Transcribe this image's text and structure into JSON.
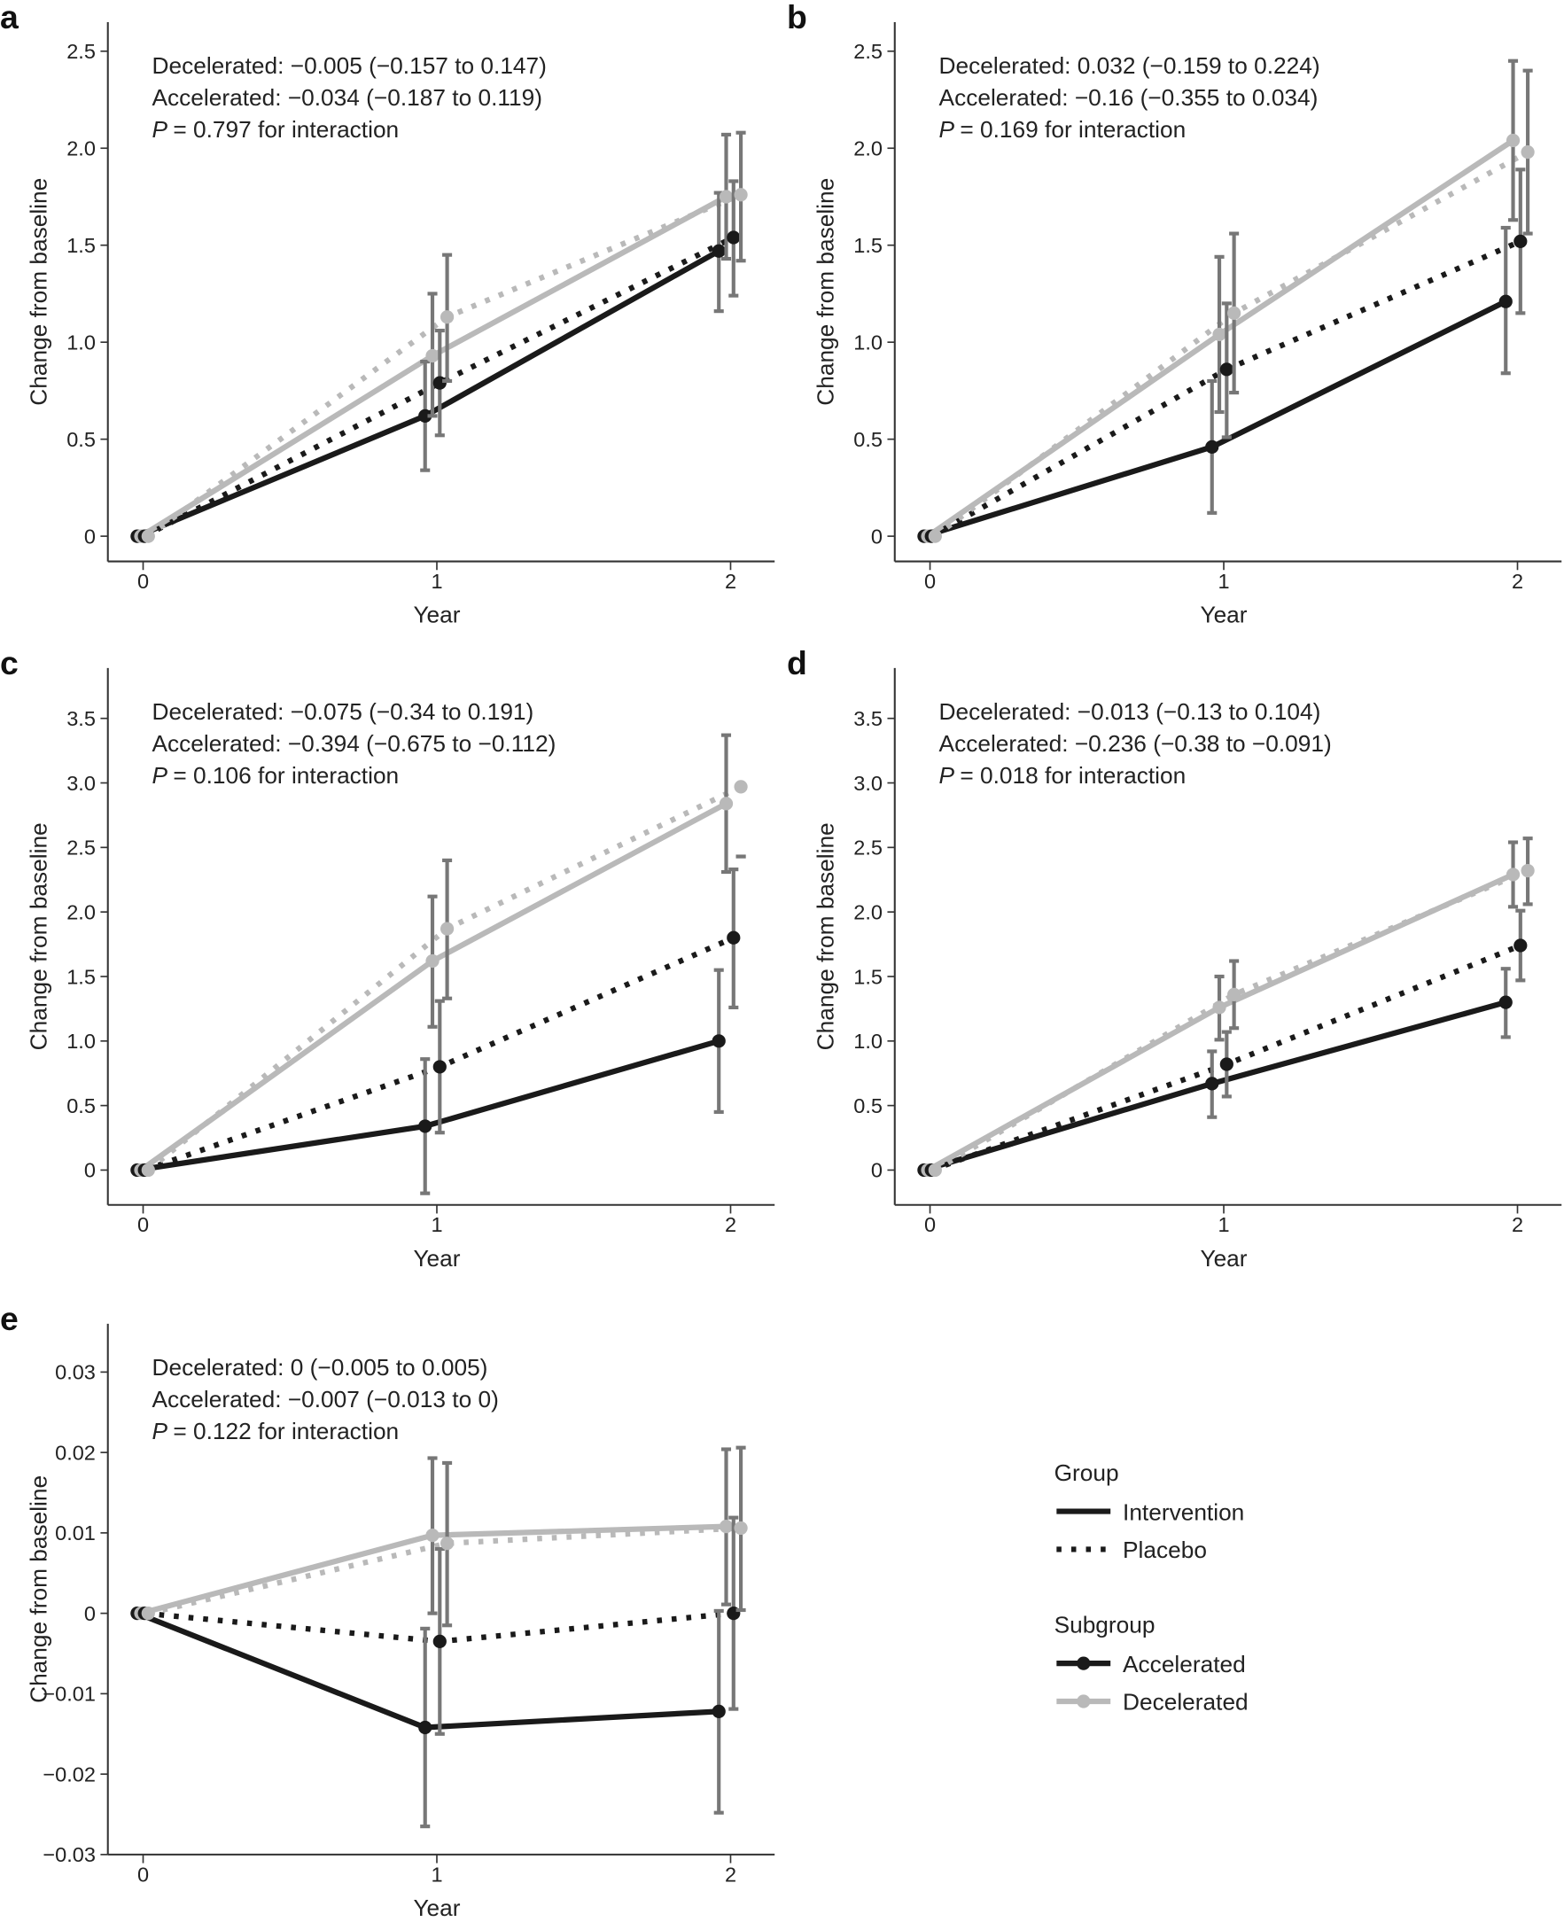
{
  "legend": {
    "group_title": "Group",
    "group_items": [
      "Intervention",
      "Placebo"
    ],
    "subgroup_title": "Subgroup",
    "subgroup_items": [
      "Accelerated",
      "Decelerated"
    ]
  },
  "colors": {
    "accelerated": "#1a1a1a",
    "decelerated": "#b9b9b9",
    "error_bar": "#777777"
  },
  "chart_data": [
    {
      "panel": "a",
      "type": "line",
      "xlabel": "Year",
      "ylabel": "Change from baseline",
      "x": [
        0,
        1,
        2
      ],
      "xlim": [
        -0.12,
        2.15
      ],
      "ylim": [
        -0.13,
        2.65
      ],
      "yticks": [
        0,
        0.5,
        1.0,
        1.5,
        2.0,
        2.5
      ],
      "ytick_labels": [
        "0",
        "0.5",
        "1.0",
        "1.5",
        "2.0",
        "2.5"
      ],
      "annotations": [
        "Decelerated: −0.005 (−0.157 to 0.147)",
        "Accelerated: −0.034 (−0.187 to 0.119)",
        "= 0.797 for interaction"
      ],
      "series": [
        {
          "group": "Intervention",
          "subgroup": "Accelerated",
          "y": [
            0,
            0.62,
            1.47
          ],
          "ci": [
            [
              0,
              0
            ],
            [
              0.34,
              0.9
            ],
            [
              1.16,
              1.77
            ]
          ]
        },
        {
          "group": "Intervention",
          "subgroup": "Decelerated",
          "y": [
            0,
            0.93,
            1.75
          ],
          "ci": [
            [
              0,
              0
            ],
            [
              0.62,
              1.25
            ],
            [
              1.43,
              2.07
            ]
          ]
        },
        {
          "group": "Placebo",
          "subgroup": "Accelerated",
          "y": [
            0,
            0.79,
            1.54
          ],
          "ci": [
            [
              0,
              0
            ],
            [
              0.52,
              1.06
            ],
            [
              1.24,
              1.83
            ]
          ]
        },
        {
          "group": "Placebo",
          "subgroup": "Decelerated",
          "y": [
            0,
            1.13,
            1.76
          ],
          "ci": [
            [
              0,
              0
            ],
            [
              0.8,
              1.45
            ],
            [
              1.42,
              2.08
            ]
          ]
        }
      ]
    },
    {
      "panel": "b",
      "type": "line",
      "xlabel": "Year",
      "ylabel": "Change from baseline",
      "x": [
        0,
        1,
        2
      ],
      "xlim": [
        -0.12,
        2.15
      ],
      "ylim": [
        -0.13,
        2.65
      ],
      "yticks": [
        0,
        0.5,
        1.0,
        1.5,
        2.0,
        2.5
      ],
      "ytick_labels": [
        "0",
        "0.5",
        "1.0",
        "1.5",
        "2.0",
        "2.5"
      ],
      "annotations": [
        "Decelerated: 0.032 (−0.159 to 0.224)",
        "Accelerated: −0.16 (−0.355 to 0.034)",
        "= 0.169 for interaction"
      ],
      "series": [
        {
          "group": "Intervention",
          "subgroup": "Accelerated",
          "y": [
            0,
            0.46,
            1.21
          ],
          "ci": [
            [
              0,
              0
            ],
            [
              0.12,
              0.8
            ],
            [
              0.84,
              1.59
            ]
          ]
        },
        {
          "group": "Intervention",
          "subgroup": "Decelerated",
          "y": [
            0,
            1.04,
            2.04
          ],
          "ci": [
            [
              0,
              0
            ],
            [
              0.64,
              1.44
            ],
            [
              1.63,
              2.45
            ]
          ]
        },
        {
          "group": "Placebo",
          "subgroup": "Accelerated",
          "y": [
            0,
            0.86,
            1.52
          ],
          "ci": [
            [
              0,
              0
            ],
            [
              0.51,
              1.2
            ],
            [
              1.15,
              1.89
            ]
          ]
        },
        {
          "group": "Placebo",
          "subgroup": "Decelerated",
          "y": [
            0,
            1.15,
            1.98
          ],
          "ci": [
            [
              0,
              0
            ],
            [
              0.74,
              1.56
            ],
            [
              1.56,
              2.4
            ]
          ]
        }
      ]
    },
    {
      "panel": "c",
      "type": "line",
      "xlabel": "Year",
      "ylabel": "Change from baseline",
      "x": [
        0,
        1,
        2
      ],
      "xlim": [
        -0.12,
        2.15
      ],
      "ylim": [
        -0.27,
        3.89
      ],
      "yticks": [
        0,
        0.5,
        1.0,
        1.5,
        2.0,
        2.5,
        3.0,
        3.5
      ],
      "ytick_labels": [
        "0",
        "0.5",
        "1.0",
        "1.5",
        "2.0",
        "2.5",
        "3.0",
        "3.5"
      ],
      "annotations": [
        "Decelerated: −0.075 (−0.34 to 0.191)",
        "Accelerated: −0.394 (−0.675 to −0.112)",
        "= 0.106 for interaction"
      ],
      "series": [
        {
          "group": "Intervention",
          "subgroup": "Accelerated",
          "y": [
            0,
            0.34,
            1.0
          ],
          "ci": [
            [
              0,
              0
            ],
            [
              -0.18,
              0.86
            ],
            [
              0.45,
              1.55
            ]
          ]
        },
        {
          "group": "Intervention",
          "subgroup": "Decelerated",
          "y": [
            0,
            1.62,
            2.84
          ],
          "ci": [
            [
              0,
              0
            ],
            [
              1.11,
              2.12
            ],
            [
              2.31,
              3.37
            ]
          ]
        },
        {
          "group": "Placebo",
          "subgroup": "Accelerated",
          "y": [
            0,
            0.8,
            1.8
          ],
          "ci": [
            [
              0,
              0
            ],
            [
              0.29,
              1.31
            ],
            [
              1.26,
              2.33
            ]
          ]
        },
        {
          "group": "Placebo",
          "subgroup": "Decelerated",
          "y": [
            0,
            1.87,
            2.97
          ],
          "ci": [
            [
              0,
              0
            ],
            [
              1.33,
              2.4
            ],
            [
              2.43,
              2.43
            ]
          ]
        }
      ]
    },
    {
      "panel": "d",
      "type": "line",
      "xlabel": "Year",
      "ylabel": "Change from baseline",
      "x": [
        0,
        1,
        2
      ],
      "xlim": [
        -0.12,
        2.15
      ],
      "ylim": [
        -0.27,
        3.89
      ],
      "yticks": [
        0,
        0.5,
        1.0,
        1.5,
        2.0,
        2.5,
        3.0,
        3.5
      ],
      "ytick_labels": [
        "0",
        "0.5",
        "1.0",
        "1.5",
        "2.0",
        "2.5",
        "3.0",
        "3.5"
      ],
      "annotations": [
        "Decelerated: −0.013 (−0.13 to 0.104)",
        "Accelerated: −0.236 (−0.38 to −0.091)",
        "= 0.018 for interaction"
      ],
      "series": [
        {
          "group": "Intervention",
          "subgroup": "Accelerated",
          "y": [
            0,
            0.67,
            1.3
          ],
          "ci": [
            [
              0,
              0
            ],
            [
              0.41,
              0.92
            ],
            [
              1.03,
              1.56
            ]
          ]
        },
        {
          "group": "Intervention",
          "subgroup": "Decelerated",
          "y": [
            0,
            1.26,
            2.29
          ],
          "ci": [
            [
              0,
              0
            ],
            [
              1.01,
              1.5
            ],
            [
              2.04,
              2.54
            ]
          ]
        },
        {
          "group": "Placebo",
          "subgroup": "Accelerated",
          "y": [
            0,
            0.82,
            1.74
          ],
          "ci": [
            [
              0,
              0
            ],
            [
              0.57,
              1.07
            ],
            [
              1.47,
              2.01
            ]
          ]
        },
        {
          "group": "Placebo",
          "subgroup": "Decelerated",
          "y": [
            0,
            1.36,
            2.32
          ],
          "ci": [
            [
              0,
              0
            ],
            [
              1.1,
              1.62
            ],
            [
              2.06,
              2.57
            ]
          ]
        }
      ]
    },
    {
      "panel": "e",
      "type": "line",
      "xlabel": "Year",
      "ylabel": "Change from baseline",
      "x": [
        0,
        1,
        2
      ],
      "xlim": [
        -0.12,
        2.15
      ],
      "ylim": [
        -0.03,
        0.036
      ],
      "yticks": [
        -0.03,
        -0.02,
        -0.01,
        0,
        0.01,
        0.02,
        0.03
      ],
      "ytick_labels": [
        "−0.03",
        "−0.02",
        "−0.01",
        "0",
        "0.01",
        "0.02",
        "0.03"
      ],
      "annotations": [
        "Decelerated: 0 (−0.005 to 0.005)",
        "Accelerated: −0.007 (−0.013 to 0)",
        "= 0.122 for interaction"
      ],
      "series": [
        {
          "group": "Intervention",
          "subgroup": "Accelerated",
          "y": [
            0,
            -0.0142,
            -0.0122
          ],
          "ci": [
            [
              0,
              0
            ],
            [
              -0.0265,
              -0.0019
            ],
            [
              -0.0248,
              0.0003
            ]
          ]
        },
        {
          "group": "Intervention",
          "subgroup": "Decelerated",
          "y": [
            0,
            0.0097,
            0.0108
          ],
          "ci": [
            [
              0,
              0
            ],
            [
              0.0,
              0.0193
            ],
            [
              0.0011,
              0.0204
            ]
          ]
        },
        {
          "group": "Placebo",
          "subgroup": "Accelerated",
          "y": [
            0,
            -0.0035,
            0
          ],
          "ci": [
            [
              0,
              0
            ],
            [
              -0.015,
              0.008
            ],
            [
              -0.0119,
              0.0119
            ]
          ]
        },
        {
          "group": "Placebo",
          "subgroup": "Decelerated",
          "y": [
            0,
            0.0087,
            0.0106
          ],
          "ci": [
            [
              0,
              0
            ],
            [
              -0.0015,
              0.0187
            ],
            [
              0.0004,
              0.0206
            ]
          ]
        }
      ]
    }
  ]
}
